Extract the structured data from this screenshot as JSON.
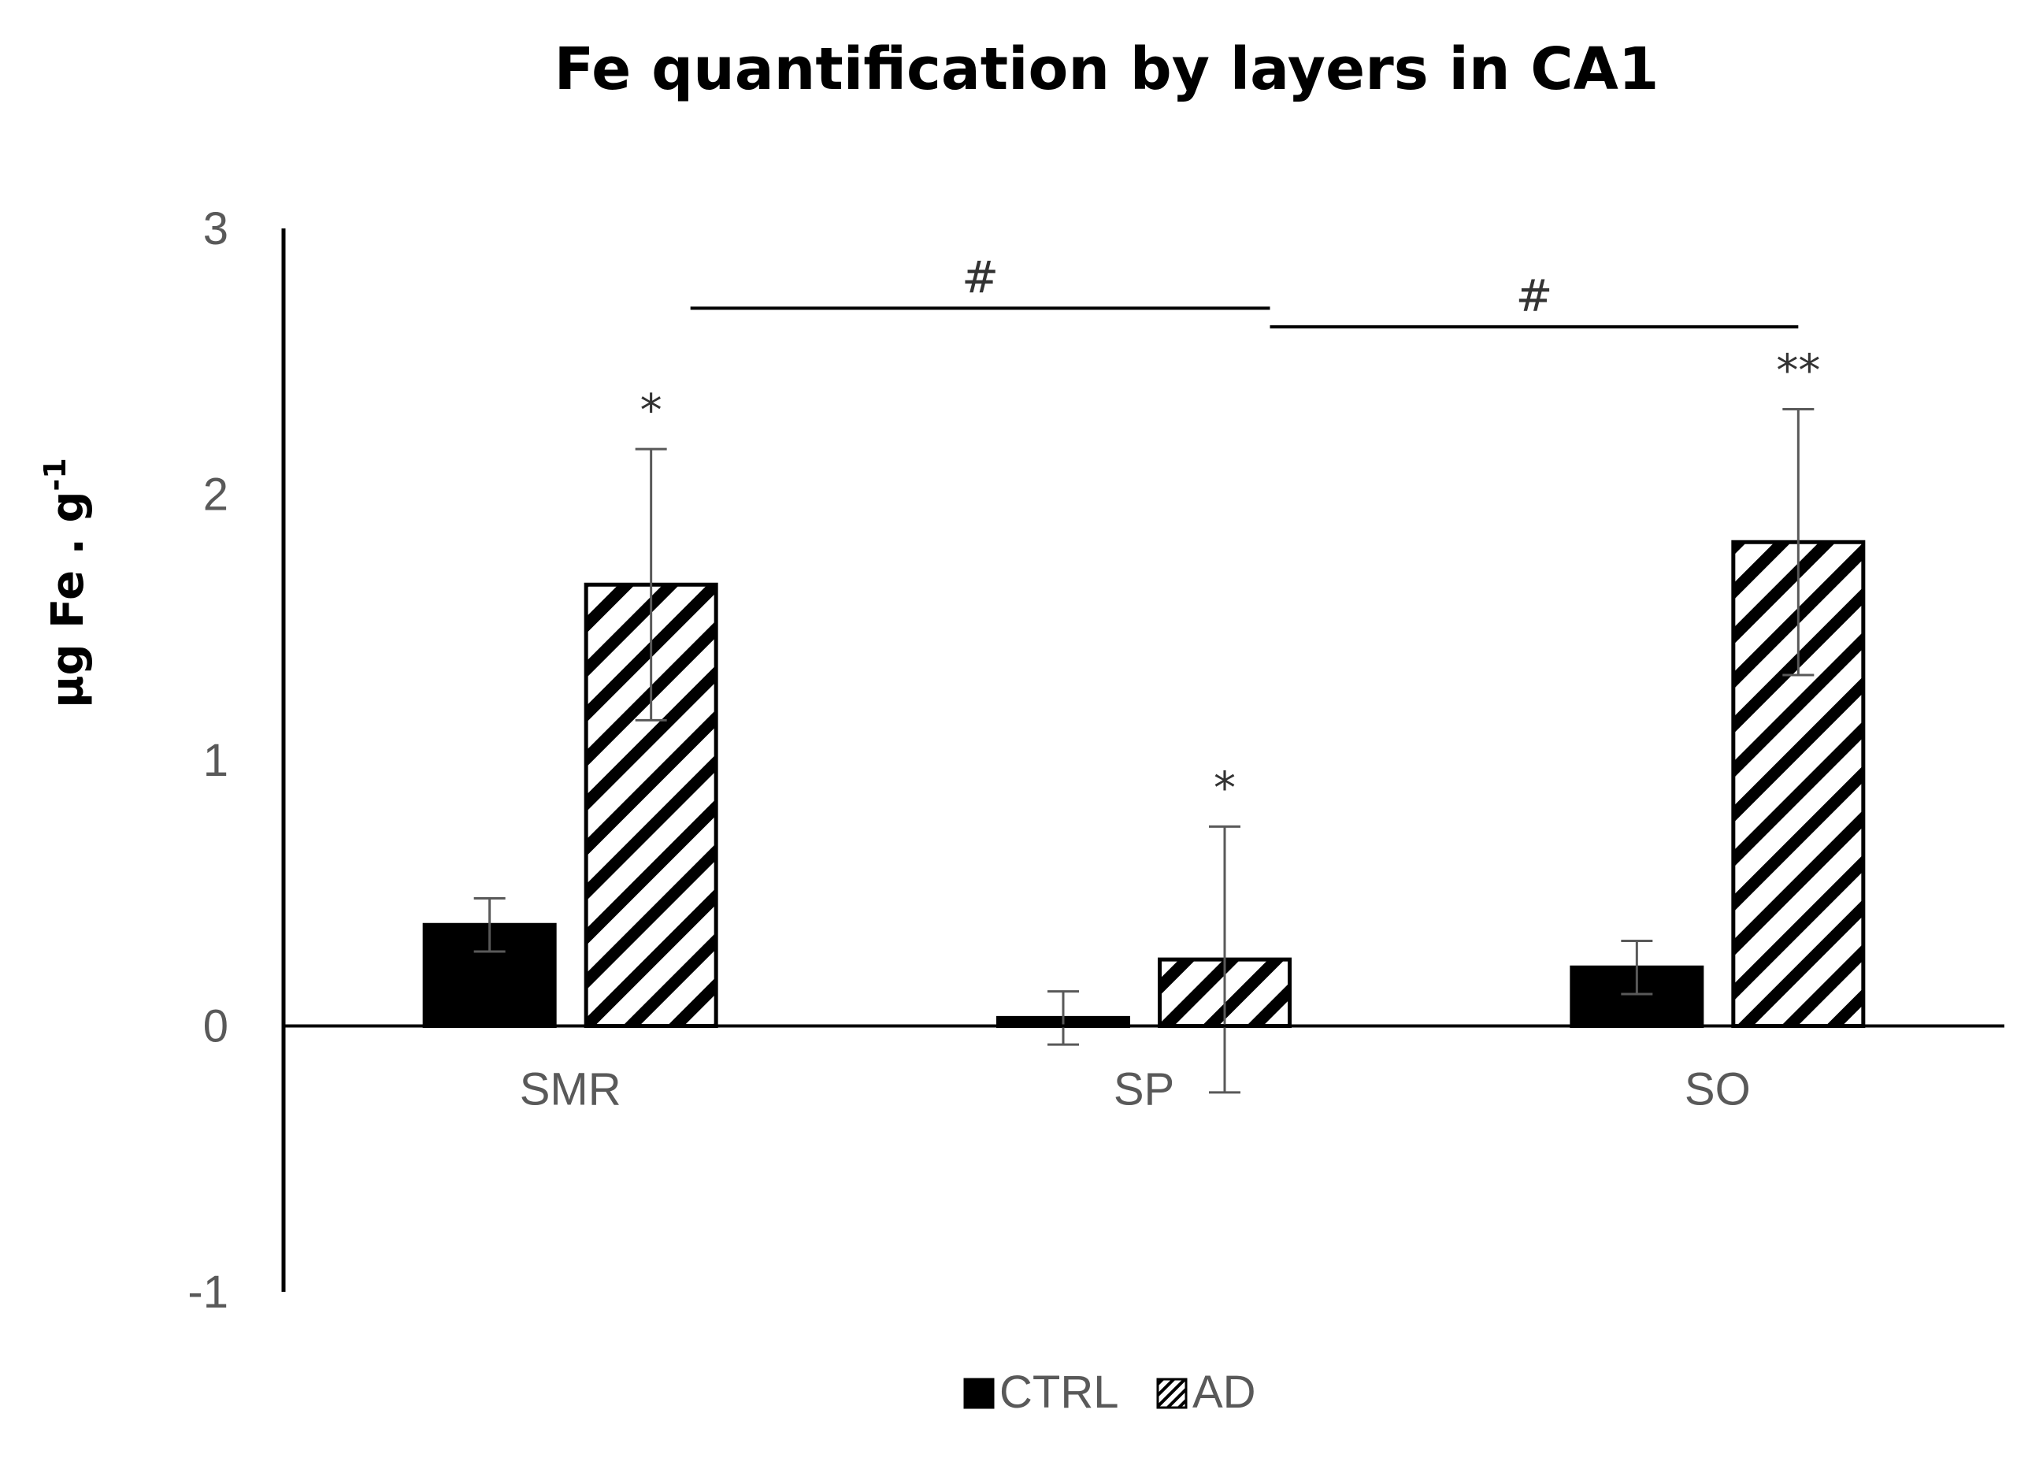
{
  "chart_data": {
    "type": "bar",
    "title": "Fe quantification by layers in CA1",
    "ylabel": "µg Fe . g",
    "ylabel_sup": "-1",
    "xlabel": "",
    "categories": [
      "SMR",
      "SP",
      "SO"
    ],
    "ylim": [
      -1,
      3
    ],
    "yticks": [
      -1,
      0,
      1,
      2,
      3
    ],
    "grid": false,
    "legend_position": "bottom",
    "series": [
      {
        "name": "CTRL",
        "fill": "solid",
        "color": "#000000",
        "values": [
          0.38,
          0.03,
          0.22
        ],
        "errors": [
          0.1,
          0.1,
          0.1
        ]
      },
      {
        "name": "AD",
        "fill": "hatch",
        "color": "#000000",
        "values": [
          1.66,
          0.25,
          1.82
        ],
        "errors": [
          0.51,
          0.5,
          0.5
        ]
      }
    ],
    "significance": [
      {
        "category": "SMR",
        "series": "AD",
        "label": "*"
      },
      {
        "category": "SP",
        "series": "AD",
        "label": "*"
      },
      {
        "category": "SO",
        "series": "AD",
        "label": "**"
      }
    ],
    "brackets": [
      {
        "from": "SMR",
        "to": "SP",
        "label": "#",
        "y": 2.7
      },
      {
        "from": "SP",
        "to": "SO",
        "label": "#",
        "y": 2.63
      }
    ]
  }
}
